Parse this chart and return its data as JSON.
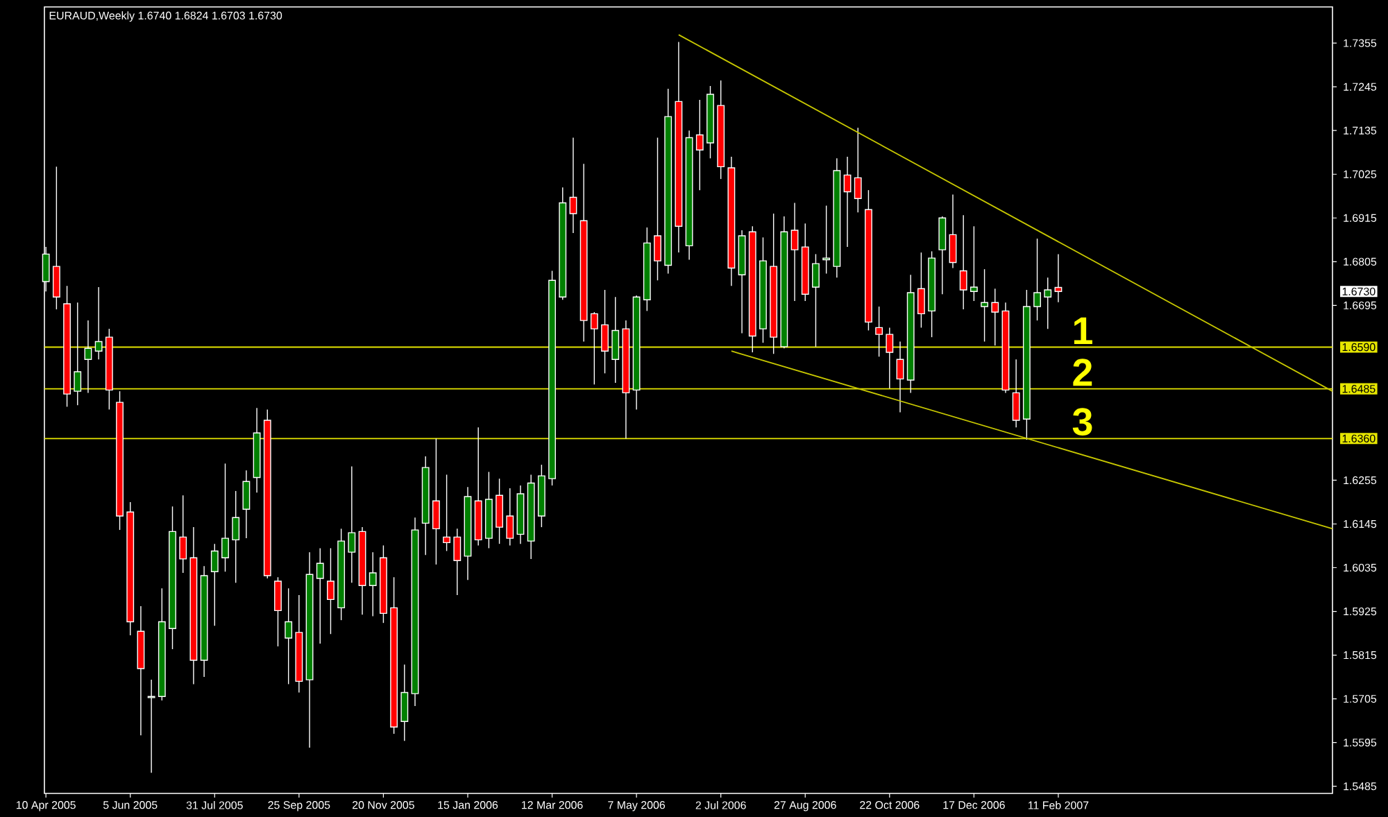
{
  "chart_data": {
    "type": "candlestick",
    "title": "EURAUD,Weekly 1.6740 1.6824 1.6703 1.6730",
    "x": [
      "2005-04-10",
      "2005-04-17",
      "2005-04-24",
      "2005-05-01",
      "2005-05-08",
      "2005-05-15",
      "2005-05-22",
      "2005-05-29",
      "2005-06-05",
      "2005-06-12",
      "2005-06-19",
      "2005-06-26",
      "2005-07-03",
      "2005-07-10",
      "2005-07-17",
      "2005-07-24",
      "2005-07-31",
      "2005-08-07",
      "2005-08-14",
      "2005-08-21",
      "2005-08-28",
      "2005-09-04",
      "2005-09-11",
      "2005-09-18",
      "2005-09-25",
      "2005-10-02",
      "2005-10-09",
      "2005-10-16",
      "2005-10-23",
      "2005-10-30",
      "2005-11-06",
      "2005-11-13",
      "2005-11-20",
      "2005-11-27",
      "2005-12-04",
      "2005-12-11",
      "2005-12-18",
      "2005-12-25",
      "2006-01-01",
      "2006-01-08",
      "2006-01-15",
      "2006-01-22",
      "2006-01-29",
      "2006-02-05",
      "2006-02-12",
      "2006-02-19",
      "2006-02-26",
      "2006-03-05",
      "2006-03-12",
      "2006-03-19",
      "2006-03-26",
      "2006-04-02",
      "2006-04-09",
      "2006-04-16",
      "2006-04-23",
      "2006-04-30",
      "2006-05-07",
      "2006-05-14",
      "2006-05-21",
      "2006-05-28",
      "2006-06-04",
      "2006-06-11",
      "2006-06-18",
      "2006-06-25",
      "2006-07-02",
      "2006-07-09",
      "2006-07-16",
      "2006-07-23",
      "2006-07-30",
      "2006-08-06",
      "2006-08-13",
      "2006-08-20",
      "2006-08-27",
      "2006-09-03",
      "2006-09-10",
      "2006-09-17",
      "2006-09-24",
      "2006-10-01",
      "2006-10-08",
      "2006-10-15",
      "2006-10-22",
      "2006-10-29",
      "2006-11-05",
      "2006-11-12",
      "2006-11-19",
      "2006-11-26",
      "2006-12-03",
      "2006-12-10",
      "2006-12-17",
      "2006-12-24",
      "2006-12-31",
      "2007-01-07",
      "2007-01-14",
      "2007-01-21",
      "2007-01-28",
      "2007-02-04",
      "2007-02-11"
    ],
    "ohlc": [
      [
        1.6755,
        1.6842,
        1.673,
        1.6824
      ],
      [
        1.6793,
        1.7044,
        1.6685,
        1.6716
      ],
      [
        1.6699,
        1.6744,
        1.644,
        1.6472
      ],
      [
        1.6479,
        1.6702,
        1.6444,
        1.6528
      ],
      [
        1.6559,
        1.6657,
        1.6475,
        1.6587
      ],
      [
        1.658,
        1.6741,
        1.6559,
        1.6604
      ],
      [
        1.6615,
        1.6636,
        1.6433,
        1.6482
      ],
      [
        1.6451,
        1.6479,
        1.613,
        1.6165
      ],
      [
        1.6175,
        1.62,
        1.5865,
        1.5899
      ],
      [
        1.5875,
        1.5938,
        1.5613,
        1.5781
      ],
      [
        1.5708,
        1.5753,
        1.5519,
        1.5711
      ],
      [
        1.5711,
        1.5983,
        1.5701,
        1.5899
      ],
      [
        1.5882,
        1.6189,
        1.583,
        1.6126
      ],
      [
        1.6112,
        1.6217,
        1.6022,
        1.6057
      ],
      [
        1.606,
        1.6137,
        1.5742,
        1.5802
      ],
      [
        1.5802,
        1.6039,
        1.576,
        1.6015
      ],
      [
        1.6025,
        1.6095,
        1.5889,
        1.6077
      ],
      [
        1.606,
        1.6297,
        1.6025,
        1.6109
      ],
      [
        1.6105,
        1.6228,
        1.5997,
        1.6161
      ],
      [
        1.6182,
        1.628,
        1.6109,
        1.6252
      ],
      [
        1.6262,
        1.6437,
        1.6224,
        1.6374
      ],
      [
        1.6406,
        1.6433,
        1.6008,
        1.6015
      ],
      [
        1.6001,
        1.6011,
        1.5837,
        1.5927
      ],
      [
        1.5858,
        1.5983,
        1.5742,
        1.5899
      ],
      [
        1.5872,
        1.5966,
        1.5721,
        1.5749
      ],
      [
        1.5753,
        1.6074,
        1.5582,
        1.6018
      ],
      [
        1.6008,
        1.6084,
        1.5844,
        1.6046
      ],
      [
        1.6001,
        1.6084,
        1.5868,
        1.5955
      ],
      [
        1.5934,
        1.6133,
        1.5903,
        1.6102
      ],
      [
        1.6074,
        1.629,
        1.5997,
        1.6123
      ],
      [
        1.6126,
        1.6137,
        1.5917,
        1.599
      ],
      [
        1.599,
        1.6074,
        1.5913,
        1.6022
      ],
      [
        1.606,
        1.6091,
        1.5896,
        1.592
      ],
      [
        1.5934,
        1.6011,
        1.5617,
        1.5634
      ],
      [
        1.5648,
        1.5791,
        1.5599,
        1.5721
      ],
      [
        1.5718,
        1.6161,
        1.5687,
        1.613
      ],
      [
        1.6147,
        1.6315,
        1.6067,
        1.6287
      ],
      [
        1.6203,
        1.636,
        1.6043,
        1.6133
      ],
      [
        1.6112,
        1.6269,
        1.6077,
        1.6098
      ],
      [
        1.6112,
        1.6133,
        1.5966,
        1.6053
      ],
      [
        1.6064,
        1.6238,
        1.6004,
        1.6214
      ],
      [
        1.6203,
        1.6388,
        1.6091,
        1.6105
      ],
      [
        1.6109,
        1.6276,
        1.6084,
        1.6207
      ],
      [
        1.6217,
        1.6259,
        1.6095,
        1.6137
      ],
      [
        1.6165,
        1.6235,
        1.6091,
        1.6109
      ],
      [
        1.6119,
        1.6242,
        1.6095,
        1.6221
      ],
      [
        1.6102,
        1.6269,
        1.6057,
        1.6248
      ],
      [
        1.6165,
        1.6294,
        1.6137,
        1.6266
      ],
      [
        1.6259,
        1.6782,
        1.6242,
        1.6758
      ],
      [
        1.6716,
        1.6992,
        1.6709,
        1.6953
      ],
      [
        1.6967,
        1.7117,
        1.6877,
        1.6926
      ],
      [
        1.6908,
        1.7051,
        1.6604,
        1.6657
      ],
      [
        1.6674,
        1.6678,
        1.6496,
        1.6636
      ],
      [
        1.6646,
        1.6734,
        1.6524,
        1.658
      ],
      [
        1.6559,
        1.6716,
        1.65,
        1.6632
      ],
      [
        1.6636,
        1.6657,
        1.636,
        1.6475
      ],
      [
        1.6482,
        1.672,
        1.6433,
        1.6716
      ],
      [
        1.6709,
        1.6891,
        1.6681,
        1.6852
      ],
      [
        1.687,
        1.7117,
        1.6758,
        1.6807
      ],
      [
        1.6796,
        1.724,
        1.6775,
        1.717
      ],
      [
        1.7208,
        1.7358,
        1.6828,
        1.6894
      ],
      [
        1.6845,
        1.7135,
        1.681,
        1.7117
      ],
      [
        1.7124,
        1.7212,
        1.6985,
        1.7086
      ],
      [
        1.7104,
        1.7247,
        1.7065,
        1.7226
      ],
      [
        1.7198,
        1.7261,
        1.7013,
        1.7044
      ],
      [
        1.7041,
        1.7069,
        1.6744,
        1.6789
      ],
      [
        1.6772,
        1.6884,
        1.6625,
        1.687
      ],
      [
        1.688,
        1.6894,
        1.6577,
        1.6618
      ],
      [
        1.6636,
        1.6866,
        1.6601,
        1.6807
      ],
      [
        1.6793,
        1.6926,
        1.6573,
        1.6615
      ],
      [
        1.6591,
        1.6919,
        1.6587,
        1.688
      ],
      [
        1.6884,
        1.6953,
        1.6706,
        1.6835
      ],
      [
        1.6842,
        1.6901,
        1.6706,
        1.6723
      ],
      [
        1.6741,
        1.6824,
        1.6591,
        1.68
      ],
      [
        1.681,
        1.6946,
        1.6775,
        1.6814
      ],
      [
        1.6793,
        1.7065,
        1.6765,
        1.7034
      ],
      [
        1.7023,
        1.7069,
        1.6842,
        1.6981
      ],
      [
        1.7016,
        1.7142,
        1.6929,
        1.6964
      ],
      [
        1.6936,
        1.6985,
        1.6632,
        1.6653
      ],
      [
        1.6639,
        1.6692,
        1.6566,
        1.6622
      ],
      [
        1.6622,
        1.6639,
        1.6486,
        1.6577
      ],
      [
        1.6559,
        1.6604,
        1.6426,
        1.651
      ],
      [
        1.6507,
        1.6772,
        1.6475,
        1.6727
      ],
      [
        1.6737,
        1.6828,
        1.6639,
        1.6674
      ],
      [
        1.6681,
        1.6831,
        1.6615,
        1.6814
      ],
      [
        1.6835,
        1.6919,
        1.6723,
        1.6915
      ],
      [
        1.6873,
        1.6974,
        1.6789,
        1.6803
      ],
      [
        1.6782,
        1.6922,
        1.6685,
        1.6734
      ],
      [
        1.673,
        1.6894,
        1.6706,
        1.6741
      ],
      [
        1.6692,
        1.6786,
        1.6604,
        1.6702
      ],
      [
        1.6702,
        1.6737,
        1.6594,
        1.6678
      ],
      [
        1.6681,
        1.6702,
        1.6475,
        1.6482
      ],
      [
        1.6475,
        1.6559,
        1.6388,
        1.6406
      ],
      [
        1.6409,
        1.6734,
        1.6357,
        1.6692
      ],
      [
        1.6692,
        1.6863,
        1.6657,
        1.6727
      ],
      [
        1.6716,
        1.6765,
        1.6636,
        1.6734
      ],
      [
        1.674,
        1.6824,
        1.6703,
        1.673
      ]
    ],
    "colors": [
      "#008000",
      "#ff0000",
      "#ff0000",
      "#008000",
      "#008000",
      "#008000",
      "#ff0000",
      "#ff0000",
      "#ff0000",
      "#ff0000",
      "#008000",
      "#008000",
      "#008000",
      "#ff0000",
      "#ff0000",
      "#008000",
      "#008000",
      "#008000",
      "#008000",
      "#008000",
      "#008000",
      "#ff0000",
      "#ff0000",
      "#008000",
      "#ff0000",
      "#008000",
      "#008000",
      "#ff0000",
      "#008000",
      "#008000",
      "#ff0000",
      "#008000",
      "#ff0000",
      "#ff0000",
      "#008000",
      "#008000",
      "#008000",
      "#ff0000",
      "#ff0000",
      "#ff0000",
      "#008000",
      "#ff0000",
      "#008000",
      "#ff0000",
      "#ff0000",
      "#008000",
      "#008000",
      "#008000",
      "#008000",
      "#008000",
      "#ff0000",
      "#ff0000",
      "#ff0000",
      "#ff0000",
      "#008000",
      "#ff0000",
      "#008000",
      "#008000",
      "#ff0000",
      "#008000",
      "#ff0000",
      "#008000",
      "#ff0000",
      "#008000",
      "#ff0000",
      "#ff0000",
      "#008000",
      "#ff0000",
      "#008000",
      "#ff0000",
      "#008000",
      "#ff0000",
      "#ff0000",
      "#008000",
      "#008000",
      "#008000",
      "#ff0000",
      "#ff0000",
      "#ff0000",
      "#ff0000",
      "#ff0000",
      "#ff0000",
      "#008000",
      "#ff0000",
      "#008000",
      "#008000",
      "#ff0000",
      "#ff0000",
      "#008000",
      "#008000",
      "#ff0000",
      "#ff0000",
      "#ff0000",
      "#008000",
      "#008000",
      "#008000",
      "#ff0000"
    ],
    "series": [
      {
        "type": "line",
        "color": "#c8c800",
        "x": [
          "2006-06-04",
          "2007-08-12"
        ],
        "values": [
          1.7376,
          1.6479
        ]
      },
      {
        "type": "line",
        "color": "#c8c800",
        "x": [
          "2006-07-09",
          "2007-08-12"
        ],
        "values": [
          1.658,
          1.6133
        ]
      }
    ],
    "ref_lines": [
      {
        "axis": "y",
        "value": 1.659,
        "color": "#e6e600"
      },
      {
        "axis": "y",
        "value": 1.6485,
        "color": "#e6e600"
      },
      {
        "axis": "y",
        "value": 1.636,
        "color": "#e6e600"
      }
    ],
    "annotations": [
      "1",
      "2",
      "3"
    ],
    "xlim": [
      "2005-04-09",
      "2007-08-12"
    ],
    "xticks": [
      {
        "value": "2005-04-10",
        "label": "10 Apr 2005"
      },
      {
        "value": "2005-06-05",
        "label": "5 Jun 2005"
      },
      {
        "value": "2005-07-31",
        "label": "31 Jul 2005"
      },
      {
        "value": "2005-09-25",
        "label": "25 Sep 2005"
      },
      {
        "value": "2005-11-20",
        "label": "20 Nov 2005"
      },
      {
        "value": "2006-01-15",
        "label": "15 Jan 2006"
      },
      {
        "value": "2006-03-12",
        "label": "12 Mar 2006"
      },
      {
        "value": "2006-05-07",
        "label": "7 May 2006"
      },
      {
        "value": "2006-07-02",
        "label": "2 Jul 2006"
      },
      {
        "value": "2006-08-27",
        "label": "27 Aug 2006"
      },
      {
        "value": "2006-10-22",
        "label": "22 Oct 2006"
      },
      {
        "value": "2006-12-17",
        "label": "17 Dec 2006"
      },
      {
        "value": "2007-02-11",
        "label": "11 Feb 2007"
      }
    ],
    "ylim": [
      1.5467,
      1.7446
    ],
    "yticks": [
      1.5485,
      1.5595,
      1.5705,
      1.5815,
      1.5925,
      1.6035,
      1.6145,
      1.6255,
      1.6695,
      1.6805,
      1.6915,
      1.7025,
      1.7135,
      1.7245,
      1.7355,
      {
        "value": 1.659,
        "label": "1.6590"
      },
      {
        "value": 1.6485,
        "label": "1.6485"
      },
      {
        "value": 1.636,
        "label": "1.6360"
      },
      {
        "value": 1.673,
        "label": "1.6730"
      }
    ]
  }
}
